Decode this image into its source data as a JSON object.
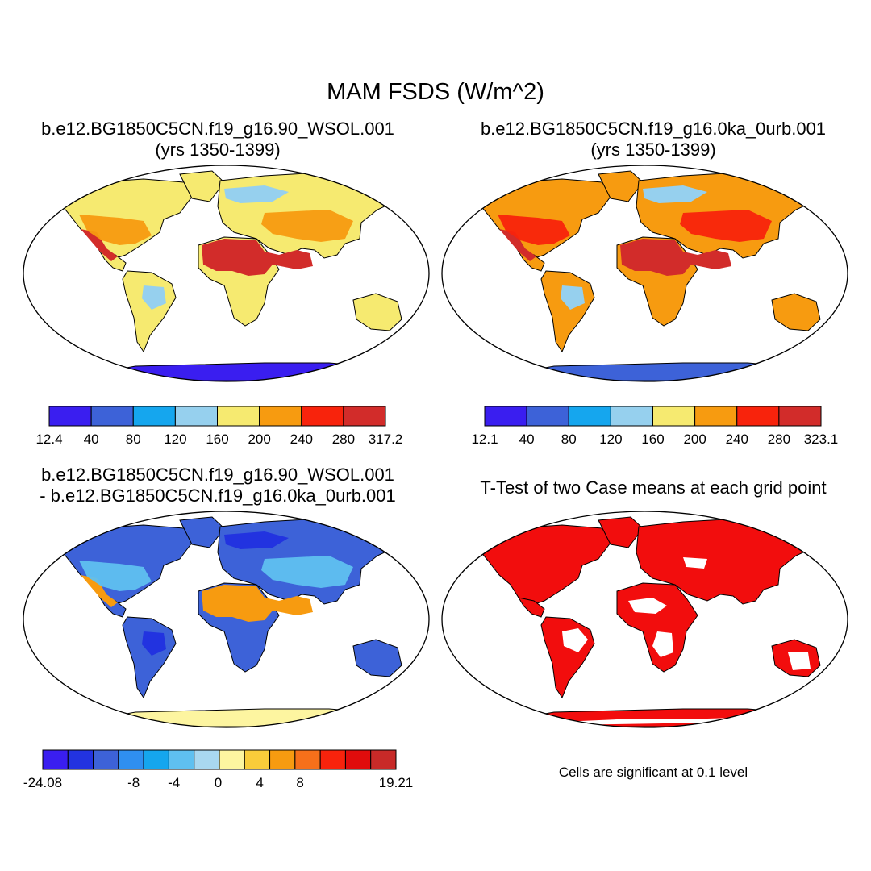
{
  "title": "MAM FSDS (W/m^2)",
  "panels": [
    {
      "id": "case1",
      "title_lines": [
        "b.e12.BG1850C5CN.f19_g16.90_WSOL.001",
        "(yrs 1350-1399)"
      ],
      "colorbar": {
        "colors": [
          "#3a1ef0",
          "#3d62d8",
          "#15a6ee",
          "#96d0ee",
          "#f6ea70",
          "#f79b10",
          "#f8230c",
          "#d22c2a"
        ],
        "labels": [
          "12.4",
          "40",
          "80",
          "120",
          "160",
          "200",
          "240",
          "280",
          "317.2"
        ]
      },
      "regions": {
        "land": "#f6ea70",
        "hot": "#d22c2a",
        "warm": "#f79b10",
        "cool": "#96d0ee",
        "antarctica": "#3a1ef0"
      }
    },
    {
      "id": "case2",
      "title_lines": [
        "b.e12.BG1850C5CN.f19_g16.0ka_0urb.001",
        "(yrs 1350-1399)"
      ],
      "colorbar": {
        "colors": [
          "#3a1ef0",
          "#3d62d8",
          "#15a6ee",
          "#96d0ee",
          "#f6ea70",
          "#f79b10",
          "#f8230c",
          "#d22c2a"
        ],
        "labels": [
          "12.1",
          "40",
          "80",
          "120",
          "160",
          "200",
          "240",
          "280",
          "323.1"
        ]
      },
      "regions": {
        "land": "#f79b10",
        "hot": "#d22c2a",
        "warm": "#f8230c",
        "cool": "#96d0ee",
        "antarctica": "#3d62d8"
      }
    },
    {
      "id": "difference",
      "title_lines": [
        "b.e12.BG1850C5CN.f19_g16.90_WSOL.001",
        "- b.e12.BG1850C5CN.f19_g16.0ka_0urb.001"
      ],
      "colorbar": {
        "colors": [
          "#3a1ef0",
          "#2233e0",
          "#3d62d8",
          "#2f8ff0",
          "#15a6ee",
          "#5fc0f0",
          "#a9d8f0",
          "#fdf5a0",
          "#f9cc3a",
          "#f79b10",
          "#f7701a",
          "#f8230c",
          "#e00c0c",
          "#c82a28"
        ],
        "labels": [
          "-24.08",
          "-8",
          "-4",
          "0",
          "4",
          "8",
          "19.21"
        ]
      },
      "regions": {
        "land": "#3d62d8",
        "hot": "#f79b10",
        "warm": "#5fc0f0",
        "cool": "#2233e0",
        "antarctica": "#fdf5a0"
      }
    },
    {
      "id": "ttest",
      "title_lines": [
        "T-Test of two Case means at each grid point"
      ],
      "note": "Cells are significant at 0.1 level",
      "regions": {
        "land": "#f20d0d"
      }
    }
  ]
}
